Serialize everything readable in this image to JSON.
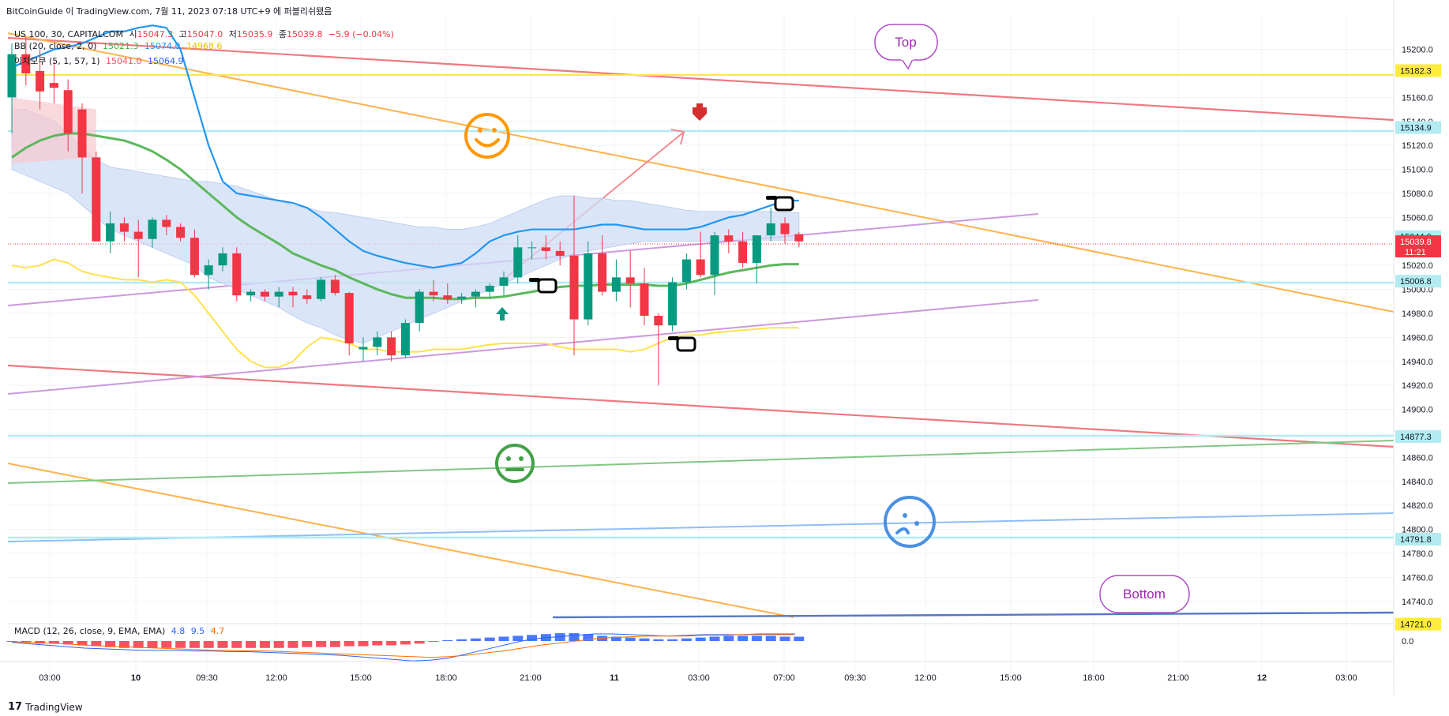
{
  "header": {
    "publish_line": "BitCoinGuide 이 TradingView.com, 7월 11, 2023 07:18 UTC+9 에 퍼블리쉬됐음"
  },
  "legend": {
    "symbol": "US 100, 30, CAPITALCOM",
    "ohlc": {
      "o_label": "시",
      "o": "15047.3",
      "h_label": "고",
      "h": "15047.0",
      "l_label": "저",
      "l": "15035.9",
      "c_label": "종",
      "c": "15039.8",
      "change": "−5.9 (−0.04%)"
    },
    "bb": {
      "label": "BB (20, close, 2, 0)",
      "v1": "15021.3",
      "v2": "15074.0",
      "v3": "14968.6"
    },
    "ichimoku": {
      "label": "이치모쿠 (5, 1, 57, 1)",
      "v1": "15041.0",
      "v2": "15064.9"
    },
    "macd": {
      "label": "MACD (12, 26, close, 9, EMA, EMA)",
      "v1": "4.8",
      "v2": "9.5",
      "v3": "4.7"
    }
  },
  "annotations": {
    "top": "Top",
    "bottom": "Bottom"
  },
  "footer": {
    "brand": "TradingView"
  },
  "colors": {
    "up": "#089981",
    "down": "#f23645",
    "bb_mid": "#4caf50",
    "bb_upper": "#2196f3",
    "bb_lower": "#ffeb3b",
    "orange": "#ff9800",
    "purple": "#c27fd6",
    "red_line": "#ef5350",
    "cloud": "#c8d8f8",
    "price_tag": "#f23645",
    "yellow_tag": "#ffeb3b",
    "cyan_tag": "#b2ebf2"
  },
  "chart_data": {
    "type": "candlestick",
    "y_axis_ticks": [
      15200,
      15180,
      15160,
      15140,
      15120,
      15100,
      15080,
      15060,
      15040,
      15020,
      15000,
      14980,
      14960,
      14940,
      14920,
      14900,
      14880,
      14860,
      14840,
      14820,
      14800,
      14780,
      14760,
      14740
    ],
    "y_tick_labels": [
      "15200.0",
      "15160.0",
      "15140.0",
      "15120.0",
      "15100.0",
      "15080.0",
      "15060.0",
      "15020.0",
      "15000.0",
      "14980.0",
      "14960.0",
      "14940.0",
      "14920.0",
      "14900.0",
      "14860.0",
      "14840.0",
      "14820.0",
      "14800.0",
      "14780.0",
      "14760.0",
      "14740.0"
    ],
    "y_tick_values": [
      15200,
      15160,
      15140,
      15120,
      15100,
      15080,
      15060,
      15020,
      15000,
      14980,
      14960,
      14940,
      14920,
      14900,
      14860,
      14840,
      14820,
      14800,
      14780,
      14760,
      14740
    ],
    "ylim": [
      14728,
      15228
    ],
    "x_tick_labels": [
      "03:00",
      "10",
      "09:30",
      "12:00",
      "15:00",
      "18:00",
      "21:00",
      "11",
      "03:00",
      "07:00",
      "09:30",
      "12:00",
      "15:00",
      "18:00",
      "21:00",
      "12",
      "03:00"
    ],
    "price_tags": [
      {
        "label": "15182.3",
        "value": 15182.3,
        "kind": "yellow"
      },
      {
        "label": "15134.9",
        "value": 15134.9,
        "kind": "cyan"
      },
      {
        "label": "15044.0",
        "value": 15044.0,
        "kind": "cyan"
      },
      {
        "label": "15039.8",
        "value": 15039.8,
        "kind": "current",
        "timer": "11:21"
      },
      {
        "label": "15006.8",
        "value": 15006.8,
        "kind": "cyan"
      },
      {
        "label": "14877.3",
        "value": 14877.3,
        "kind": "cyan"
      },
      {
        "label": "14791.8",
        "value": 14791.8,
        "kind": "cyan"
      },
      {
        "label": "14721.0",
        "value": 14721.0,
        "kind": "yellow"
      }
    ],
    "macd_zero_label": "0.0",
    "candles": [
      [
        15160,
        15205,
        15130,
        15196
      ],
      [
        15196,
        15210,
        15170,
        15180
      ],
      [
        15182,
        15200,
        15150,
        15165
      ],
      [
        15172,
        15190,
        15155,
        15168
      ],
      [
        15166,
        15175,
        15115,
        15130
      ],
      [
        15150,
        15155,
        15080,
        15110
      ],
      [
        15110,
        15115,
        15040,
        15040
      ],
      [
        15040,
        15065,
        15030,
        15055
      ],
      [
        15055,
        15060,
        15040,
        15048
      ],
      [
        15048,
        15058,
        15010,
        15042
      ],
      [
        15042,
        15060,
        15035,
        15058
      ],
      [
        15058,
        15062,
        15045,
        15052
      ],
      [
        15052,
        15055,
        15040,
        15043
      ],
      [
        15043,
        15050,
        15010,
        15012
      ],
      [
        15012,
        15025,
        15000,
        15020
      ],
      [
        15020,
        15035,
        15015,
        15030
      ],
      [
        15030,
        15035,
        14990,
        14995
      ],
      [
        14995,
        15000,
        14990,
        14998
      ],
      [
        14998,
        15000,
        14990,
        14994
      ],
      [
        14994,
        15002,
        14985,
        14998
      ],
      [
        14998,
        15002,
        14985,
        14995
      ],
      [
        14995,
        15000,
        14988,
        14992
      ],
      [
        14992,
        15010,
        14990,
        15008
      ],
      [
        15008,
        15012,
        14995,
        14997
      ],
      [
        14997,
        14998,
        14945,
        14955
      ],
      [
        14950,
        14960,
        14940,
        14952
      ],
      [
        14952,
        14965,
        14945,
        14960
      ],
      [
        14960,
        14965,
        14940,
        14945
      ],
      [
        14945,
        14975,
        14943,
        14972
      ],
      [
        14972,
        15000,
        14965,
        14998
      ],
      [
        14998,
        15008,
        14990,
        14995
      ],
      [
        14995,
        15005,
        14988,
        14992
      ],
      [
        14992,
        14997,
        14988,
        14994
      ],
      [
        14994,
        15000,
        14985,
        14998
      ],
      [
        14998,
        15005,
        14993,
        15003
      ],
      [
        15003,
        15015,
        14995,
        15010
      ],
      [
        15010,
        15045,
        15005,
        15035
      ],
      [
        15035,
        15040,
        15025,
        15035
      ],
      [
        15035,
        15045,
        15025,
        15032
      ],
      [
        15032,
        15040,
        15020,
        15028
      ],
      [
        15028,
        15078,
        14945,
        14975
      ],
      [
        14975,
        15040,
        14970,
        15030
      ],
      [
        15030,
        15045,
        14995,
        14998
      ],
      [
        14998,
        15025,
        14990,
        15010
      ],
      [
        15010,
        15032,
        14985,
        15005
      ],
      [
        15005,
        15018,
        14970,
        14978
      ],
      [
        14978,
        14980,
        14920,
        14970
      ],
      [
        14970,
        15010,
        14965,
        15006
      ],
      [
        15006,
        15030,
        15000,
        15025
      ],
      [
        15025,
        15048,
        15010,
        15012
      ],
      [
        15012,
        15048,
        14995,
        15045
      ],
      [
        15045,
        15050,
        15030,
        15040
      ],
      [
        15040,
        15048,
        15018,
        15022
      ],
      [
        15022,
        15045,
        15005,
        15045
      ],
      [
        15045,
        15068,
        15040,
        15055
      ],
      [
        15055,
        15060,
        15038,
        15046
      ],
      [
        15046,
        15048,
        15035,
        15040
      ]
    ],
    "macd_hist": [
      -1,
      -2,
      -3,
      -3,
      -4,
      -5,
      -6,
      -7,
      -8,
      -8,
      -8,
      -8,
      -8,
      -8,
      -8,
      -8,
      -8,
      -8,
      -8,
      -8,
      -8,
      -7,
      -7,
      -7,
      -6,
      -6,
      -5,
      -5,
      -4,
      -3,
      -1,
      1,
      2,
      3,
      4,
      5,
      6,
      7,
      8,
      9,
      9,
      8,
      6,
      5,
      4,
      3,
      2,
      2,
      3,
      4,
      5,
      6,
      6,
      6,
      6,
      5,
      5
    ],
    "macd_line": [
      -2,
      -4,
      -6,
      -8,
      -10,
      -11,
      -12,
      -13,
      -13,
      -13,
      -14,
      -14,
      -15,
      -15,
      -16,
      -17,
      -18,
      -19,
      -20,
      -22,
      -24,
      -26,
      -28,
      -27,
      -24,
      -18,
      -12,
      -6,
      0,
      4,
      6,
      8,
      10,
      10,
      9,
      8,
      7,
      8,
      9,
      9,
      9,
      10,
      10,
      10
    ],
    "signal_line": [
      -1,
      -2,
      -3,
      -4,
      -6,
      -7,
      -8,
      -9,
      -10,
      -11,
      -12,
      -13,
      -13,
      -14,
      -14,
      -15,
      -16,
      -17,
      -18,
      -19,
      -20,
      -21,
      -22,
      -23,
      -22,
      -20,
      -17,
      -14,
      -10,
      -6,
      -3,
      0,
      3,
      5,
      6,
      7,
      7,
      7,
      8,
      8,
      9,
      9,
      9,
      9
    ]
  }
}
